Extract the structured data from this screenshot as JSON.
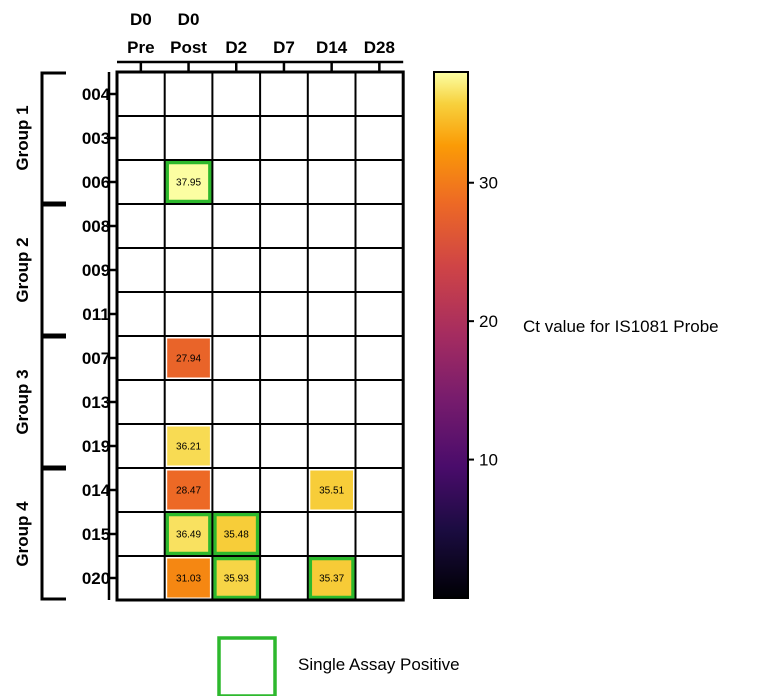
{
  "chart_data": {
    "type": "heatmap",
    "columns": [
      {
        "top": "D0",
        "bottom": "Pre"
      },
      {
        "top": "D0",
        "bottom": "Post"
      },
      {
        "top": "",
        "bottom": "D2"
      },
      {
        "top": "",
        "bottom": "D7"
      },
      {
        "top": "",
        "bottom": "D14"
      },
      {
        "top": "",
        "bottom": "D28"
      }
    ],
    "rows": [
      "004",
      "003",
      "006",
      "008",
      "009",
      "011",
      "007",
      "013",
      "019",
      "014",
      "015",
      "020"
    ],
    "groups": [
      {
        "label": "Group 1",
        "rows": [
          "004",
          "003",
          "006"
        ]
      },
      {
        "label": "Group 2",
        "rows": [
          "008",
          "009",
          "011"
        ]
      },
      {
        "label": "Group 3",
        "rows": [
          "007",
          "013",
          "019"
        ]
      },
      {
        "label": "Group 4",
        "rows": [
          "014",
          "015",
          "020"
        ]
      }
    ],
    "cells": [
      {
        "row": "006",
        "col": 1,
        "value": 37.95,
        "label": "37.95",
        "single_assay_positive": true
      },
      {
        "row": "007",
        "col": 1,
        "value": 27.94,
        "label": "27.94",
        "single_assay_positive": false
      },
      {
        "row": "019",
        "col": 1,
        "value": 36.21,
        "label": "36.21",
        "single_assay_positive": false
      },
      {
        "row": "014",
        "col": 1,
        "value": 28.47,
        "label": "28.47",
        "single_assay_positive": false
      },
      {
        "row": "014",
        "col": 4,
        "value": 35.51,
        "label": "35.51",
        "single_assay_positive": false
      },
      {
        "row": "015",
        "col": 1,
        "value": 36.49,
        "label": "36.49",
        "single_assay_positive": true
      },
      {
        "row": "015",
        "col": 2,
        "value": 35.48,
        "label": "35.48",
        "single_assay_positive": true
      },
      {
        "row": "020",
        "col": 1,
        "value": 31.03,
        "label": "31.03",
        "single_assay_positive": false
      },
      {
        "row": "020",
        "col": 2,
        "value": 35.93,
        "label": "35.93",
        "single_assay_positive": true
      },
      {
        "row": "020",
        "col": 4,
        "value": 35.37,
        "label": "35.37",
        "single_assay_positive": true
      }
    ],
    "colorbar": {
      "label": "Ct value for IS1081 Probe",
      "range": [
        0,
        38
      ],
      "ticks": [
        10,
        20,
        30
      ],
      "colormap": "inferno"
    },
    "legend": {
      "label": "Single Assay Positive",
      "color": "#2db82d"
    }
  },
  "colors": {
    "grid": "#000000",
    "positive_border": "#2db82d"
  }
}
